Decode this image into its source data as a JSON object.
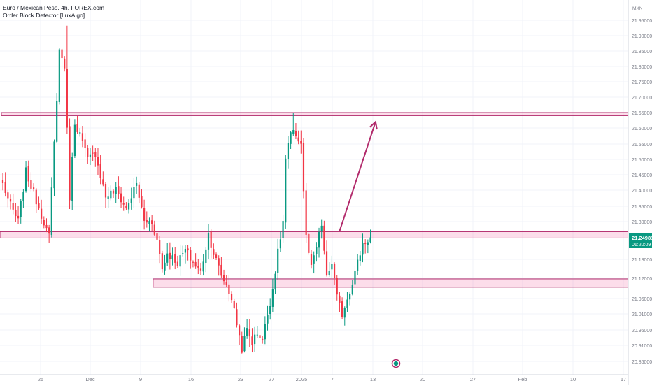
{
  "legend": {
    "symbol_line": "Euro / Mexican Peso, 4h, FOREX.com",
    "indicator_line": "Order Block Detector [LuxAlgo]"
  },
  "price_axis": {
    "currency": "MXN",
    "ticks": [
      "21.95000",
      "21.90000",
      "21.85000",
      "21.80000",
      "21.75000",
      "21.70000",
      "21.65000",
      "21.60000",
      "21.55000",
      "21.50000",
      "21.45000",
      "21.40000",
      "21.35000",
      "21.30000",
      "21.18000",
      "21.12000",
      "21.06000",
      "21.01000",
      "20.96000",
      "20.91000",
      "20.86000"
    ],
    "last_price": "21.24981",
    "countdown": "01:20:09",
    "last_price_color": "#089981"
  },
  "time_axis": {
    "ticks": [
      "25",
      "Dec",
      "9",
      "16",
      "23",
      "27",
      "2025",
      "7",
      "13",
      "20",
      "27",
      "Feb",
      "10",
      "17"
    ]
  },
  "chart_data": {
    "type": "candlestick",
    "title": "Euro / Mexican Peso, 4h, FOREX.com",
    "indicator": "Order Block Detector [LuxAlgo]",
    "up_color": "#089981",
    "down_color": "#f23645",
    "zone_color": "#b22a6b",
    "zones": [
      {
        "top": 21.65,
        "bottom": 21.64,
        "from_candle": 0,
        "to_candle": 999
      },
      {
        "top": 21.268,
        "bottom": 21.248,
        "from_candle": -99,
        "to_candle": 999
      },
      {
        "top": 21.118,
        "bottom": 21.093,
        "from_candle": 59,
        "to_candle": 999
      }
    ],
    "projection_arrow": {
      "from": [
        131,
        21.27
      ],
      "to": [
        145,
        21.62
      ]
    },
    "anchors": [
      [
        0,
        21.42
      ],
      [
        3,
        21.35
      ],
      [
        6,
        21.3
      ],
      [
        9,
        21.46
      ],
      [
        12,
        21.39
      ],
      [
        16,
        21.3
      ],
      [
        18,
        21.25
      ],
      [
        20,
        21.55
      ],
      [
        22,
        21.85
      ],
      [
        24,
        21.8
      ],
      [
        26,
        21.38
      ],
      [
        28,
        21.62
      ],
      [
        30,
        21.58
      ],
      [
        33,
        21.5
      ],
      [
        36,
        21.52
      ],
      [
        40,
        21.38
      ],
      [
        44,
        21.4
      ],
      [
        48,
        21.34
      ],
      [
        52,
        21.42
      ],
      [
        55,
        21.3
      ],
      [
        58,
        21.3
      ],
      [
        60,
        21.24
      ],
      [
        62,
        21.15
      ],
      [
        64,
        21.2
      ],
      [
        68,
        21.17
      ],
      [
        71,
        21.21
      ],
      [
        74,
        21.17
      ],
      [
        77,
        21.14
      ],
      [
        80,
        21.26
      ],
      [
        82,
        21.2
      ],
      [
        85,
        21.13
      ],
      [
        87,
        21.1
      ],
      [
        89,
        21.06
      ],
      [
        91,
        20.98
      ],
      [
        93,
        20.9
      ],
      [
        95,
        20.96
      ],
      [
        97,
        20.92
      ],
      [
        99,
        20.95
      ],
      [
        101,
        20.93
      ],
      [
        103,
        21.01
      ],
      [
        105,
        21.09
      ],
      [
        107,
        21.2
      ],
      [
        109,
        21.3
      ],
      [
        110,
        21.5
      ],
      [
        112,
        21.58
      ],
      [
        114,
        21.58
      ],
      [
        116,
        21.55
      ],
      [
        118,
        21.25
      ],
      [
        120,
        21.15
      ],
      [
        122,
        21.22
      ],
      [
        124,
        21.29
      ],
      [
        126,
        21.12
      ],
      [
        128,
        21.17
      ],
      [
        130,
        21.06
      ],
      [
        132,
        21.01
      ],
      [
        134,
        21.06
      ],
      [
        136,
        21.11
      ],
      [
        138,
        21.17
      ],
      [
        140,
        21.23
      ],
      [
        143,
        21.25
      ]
    ]
  },
  "markers": {
    "event_icon": "event-flag-icon"
  }
}
